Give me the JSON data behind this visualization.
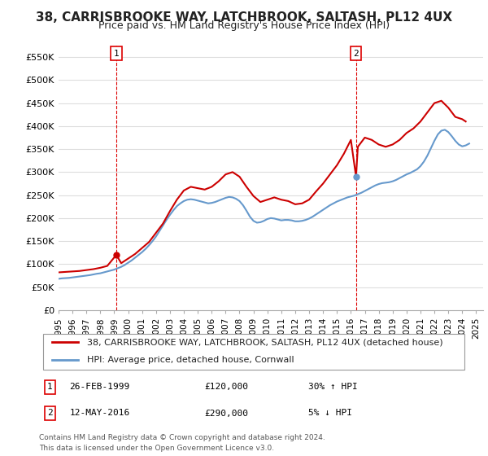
{
  "title": "38, CARRISBROOKE WAY, LATCHBROOK, SALTASH, PL12 4UX",
  "subtitle": "Price paid vs. HM Land Registry's House Price Index (HPI)",
  "ylabel_ticks": [
    0,
    50000,
    100000,
    150000,
    200000,
    250000,
    300000,
    350000,
    400000,
    450000,
    500000,
    550000
  ],
  "ylim": [
    0,
    575000
  ],
  "xlim_start": 1995.0,
  "xlim_end": 2025.5,
  "red_line_label": "38, CARRISBROOKE WAY, LATCHBROOK, SALTASH, PL12 4UX (detached house)",
  "blue_line_label": "HPI: Average price, detached house, Cornwall",
  "marker1_x": 1999.15,
  "marker1_y": 120000,
  "marker1_label": "1",
  "marker1_date": "26-FEB-1999",
  "marker1_price": "£120,000",
  "marker1_hpi": "30% ↑ HPI",
  "marker2_x": 2016.37,
  "marker2_y": 290000,
  "marker2_label": "2",
  "marker2_date": "12-MAY-2016",
  "marker2_price": "£290,000",
  "marker2_hpi": "5% ↓ HPI",
  "red_color": "#cc0000",
  "blue_color": "#6699cc",
  "vline_color": "#dd0000",
  "background_color": "#ffffff",
  "grid_color": "#dddddd",
  "font_color": "#222222",
  "title_fontsize": 11,
  "subtitle_fontsize": 9,
  "tick_fontsize": 8,
  "legend_fontsize": 8,
  "table_fontsize": 8,
  "hpi_years": [
    1995.0,
    1995.25,
    1995.5,
    1995.75,
    1996.0,
    1996.25,
    1996.5,
    1996.75,
    1997.0,
    1997.25,
    1997.5,
    1997.75,
    1998.0,
    1998.25,
    1998.5,
    1998.75,
    1999.0,
    1999.25,
    1999.5,
    1999.75,
    2000.0,
    2000.25,
    2000.5,
    2000.75,
    2001.0,
    2001.25,
    2001.5,
    2001.75,
    2002.0,
    2002.25,
    2002.5,
    2002.75,
    2003.0,
    2003.25,
    2003.5,
    2003.75,
    2004.0,
    2004.25,
    2004.5,
    2004.75,
    2005.0,
    2005.25,
    2005.5,
    2005.75,
    2006.0,
    2006.25,
    2006.5,
    2006.75,
    2007.0,
    2007.25,
    2007.5,
    2007.75,
    2008.0,
    2008.25,
    2008.5,
    2008.75,
    2009.0,
    2009.25,
    2009.5,
    2009.75,
    2010.0,
    2010.25,
    2010.5,
    2010.75,
    2011.0,
    2011.25,
    2011.5,
    2011.75,
    2012.0,
    2012.25,
    2012.5,
    2012.75,
    2013.0,
    2013.25,
    2013.5,
    2013.75,
    2014.0,
    2014.25,
    2014.5,
    2014.75,
    2015.0,
    2015.25,
    2015.5,
    2015.75,
    2016.0,
    2016.25,
    2016.5,
    2016.75,
    2017.0,
    2017.25,
    2017.5,
    2017.75,
    2018.0,
    2018.25,
    2018.5,
    2018.75,
    2019.0,
    2019.25,
    2019.5,
    2019.75,
    2020.0,
    2020.25,
    2020.5,
    2020.75,
    2021.0,
    2021.25,
    2021.5,
    2021.75,
    2022.0,
    2022.25,
    2022.5,
    2022.75,
    2023.0,
    2023.25,
    2023.5,
    2023.75,
    2024.0,
    2024.25,
    2024.5
  ],
  "hpi_values": [
    68000,
    69000,
    69500,
    70000,
    71000,
    72000,
    73000,
    74000,
    75000,
    76000,
    77500,
    79000,
    80000,
    82000,
    84000,
    86000,
    88000,
    91000,
    94000,
    98000,
    103000,
    108000,
    114000,
    120000,
    126000,
    133000,
    141000,
    150000,
    160000,
    172000,
    184000,
    196000,
    207000,
    217000,
    226000,
    232000,
    237000,
    240000,
    241000,
    240000,
    238000,
    236000,
    234000,
    232000,
    233000,
    235000,
    238000,
    241000,
    244000,
    246000,
    245000,
    242000,
    237000,
    228000,
    216000,
    203000,
    194000,
    190000,
    191000,
    194000,
    198000,
    200000,
    199000,
    197000,
    195000,
    196000,
    196000,
    195000,
    193000,
    193000,
    194000,
    196000,
    199000,
    203000,
    208000,
    213000,
    218000,
    223000,
    228000,
    232000,
    236000,
    239000,
    242000,
    245000,
    247000,
    249000,
    252000,
    255000,
    259000,
    263000,
    267000,
    271000,
    274000,
    276000,
    277000,
    278000,
    280000,
    283000,
    287000,
    291000,
    295000,
    298000,
    302000,
    306000,
    313000,
    323000,
    336000,
    352000,
    368000,
    382000,
    390000,
    392000,
    387000,
    378000,
    368000,
    360000,
    356000,
    358000,
    362000
  ],
  "red_years": [
    1995.0,
    1995.5,
    1996.0,
    1996.5,
    1997.0,
    1997.5,
    1998.0,
    1998.5,
    1999.15,
    1999.5,
    2000.0,
    2000.5,
    2001.0,
    2001.5,
    2002.0,
    2002.5,
    2003.0,
    2003.5,
    2004.0,
    2004.5,
    2005.0,
    2005.5,
    2006.0,
    2006.5,
    2007.0,
    2007.5,
    2008.0,
    2008.5,
    2009.0,
    2009.5,
    2010.0,
    2010.5,
    2011.0,
    2011.5,
    2012.0,
    2012.5,
    2013.0,
    2013.5,
    2014.0,
    2014.5,
    2015.0,
    2015.5,
    2016.0,
    2016.37,
    2016.5,
    2017.0,
    2017.5,
    2018.0,
    2018.5,
    2019.0,
    2019.5,
    2020.0,
    2020.5,
    2021.0,
    2021.5,
    2022.0,
    2022.5,
    2023.0,
    2023.5,
    2024.0,
    2024.25
  ],
  "red_values": [
    82000,
    83000,
    84000,
    85000,
    87000,
    89000,
    92000,
    96000,
    120000,
    102000,
    112000,
    122000,
    135000,
    148000,
    168000,
    188000,
    215000,
    240000,
    260000,
    268000,
    265000,
    262000,
    268000,
    280000,
    295000,
    300000,
    290000,
    268000,
    248000,
    235000,
    240000,
    245000,
    240000,
    237000,
    230000,
    232000,
    240000,
    258000,
    275000,
    295000,
    315000,
    340000,
    370000,
    290000,
    355000,
    375000,
    370000,
    360000,
    355000,
    360000,
    370000,
    385000,
    395000,
    410000,
    430000,
    450000,
    455000,
    440000,
    420000,
    415000,
    410000
  ],
  "footer_text": "Contains HM Land Registry data © Crown copyright and database right 2024.\nThis data is licensed under the Open Government Licence v3.0."
}
